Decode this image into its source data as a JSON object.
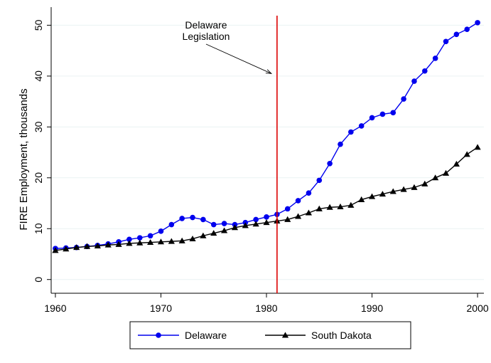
{
  "chart_data": {
    "type": "line",
    "ylabel": "FIRE Employment, thousands",
    "xlim": [
      1960,
      2000
    ],
    "ylim": [
      0,
      50
    ],
    "x_ticks": [
      1960,
      1970,
      1980,
      1990,
      2000
    ],
    "y_ticks": [
      0,
      10,
      20,
      30,
      40,
      50
    ],
    "grid": "horizontal",
    "legend_position": "bottom",
    "x": [
      1960,
      1961,
      1962,
      1963,
      1964,
      1965,
      1966,
      1967,
      1968,
      1969,
      1970,
      1971,
      1972,
      1973,
      1974,
      1975,
      1976,
      1977,
      1978,
      1979,
      1980,
      1981,
      1982,
      1983,
      1984,
      1985,
      1986,
      1987,
      1988,
      1989,
      1990,
      1991,
      1992,
      1993,
      1994,
      1995,
      1996,
      1997,
      1998,
      1999,
      2000
    ],
    "series": [
      {
        "name": "Delaware",
        "color": "#0000ee",
        "marker": "circle",
        "values": [
          6.1,
          6.2,
          6.3,
          6.5,
          6.7,
          7.0,
          7.4,
          7.9,
          8.2,
          8.6,
          9.5,
          10.8,
          12.0,
          12.2,
          11.8,
          10.8,
          11.0,
          10.8,
          11.2,
          11.8,
          12.3,
          12.8,
          13.9,
          15.5,
          17.0,
          19.5,
          22.8,
          26.6,
          29.0,
          30.2,
          31.8,
          32.5,
          32.8,
          35.5,
          39.0,
          41.0,
          43.5,
          46.8,
          48.2,
          49.2,
          50.5
        ]
      },
      {
        "name": "South Dakota",
        "color": "#000000",
        "marker": "triangle",
        "values": [
          5.7,
          6.0,
          6.3,
          6.5,
          6.6,
          6.8,
          6.9,
          7.1,
          7.2,
          7.3,
          7.4,
          7.5,
          7.6,
          8.0,
          8.6,
          9.1,
          9.6,
          10.2,
          10.6,
          10.9,
          11.2,
          11.5,
          11.8,
          12.4,
          13.1,
          13.9,
          14.2,
          14.3,
          14.6,
          15.7,
          16.3,
          16.8,
          17.3,
          17.7,
          18.1,
          18.8,
          20.0,
          20.9,
          22.7,
          24.6,
          26.0
        ]
      }
    ],
    "annotations": [
      {
        "label_line1": "Delaware",
        "label_line2": "Legislation",
        "x": 1981,
        "arrow_to_y": 40.5,
        "line_color": "#dd0000"
      }
    ]
  }
}
